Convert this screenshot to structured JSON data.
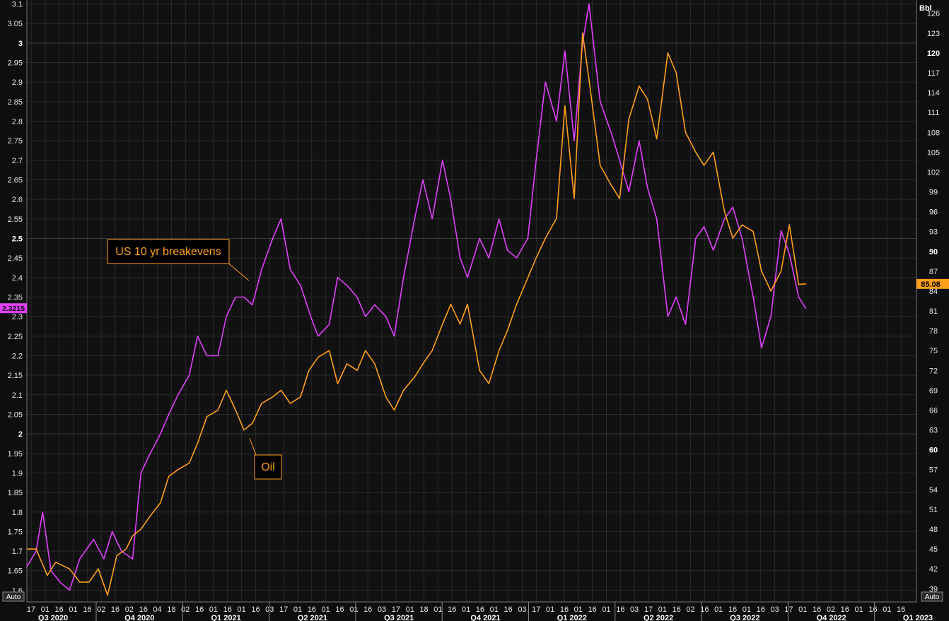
{
  "chart_data": {
    "type": "line",
    "left_axis": {
      "ylim": [
        1.57,
        3.11
      ],
      "ticks": [
        "1.6",
        "1.65",
        "1.7",
        "1.75",
        "1.8",
        "1.85",
        "1.9",
        "1.95",
        "2",
        "2.05",
        "2.1",
        "2.15",
        "2.2",
        "2.25",
        "2.3",
        "2.35",
        "2.4",
        "2.45",
        "2.5",
        "2.55",
        "2.6",
        "2.65",
        "2.7",
        "2.75",
        "2.8",
        "2.85",
        "2.9",
        "2.95",
        "3",
        "3.05",
        "3.1"
      ],
      "bold_ticks": [
        "2",
        "2.5",
        "3"
      ],
      "current_value": "2.3215",
      "auto_label": "Auto"
    },
    "right_axis": {
      "unit": "Bbl",
      "ylim": [
        37,
        128
      ],
      "ticks": [
        "39",
        "42",
        "45",
        "48",
        "51",
        "54",
        "57",
        "60",
        "63",
        "66",
        "69",
        "72",
        "75",
        "78",
        "81",
        "84",
        "87",
        "90",
        "93",
        "96",
        "99",
        "102",
        "105",
        "108",
        "111",
        "114",
        "117",
        "120",
        "123",
        "126"
      ],
      "bold_ticks": [
        "60",
        "90",
        "120"
      ],
      "current_value": "85.08",
      "auto_label": "Auto"
    },
    "x_axis": {
      "day_ticks": [
        "17",
        "01",
        "16",
        "01",
        "16",
        "02",
        "16",
        "02",
        "16",
        "04",
        "18",
        "02",
        "16",
        "01",
        "16",
        "01",
        "16",
        "03",
        "17",
        "01",
        "16",
        "01",
        "16",
        "01",
        "16",
        "03",
        "17",
        "01",
        "18",
        "01",
        "16",
        "01",
        "16",
        "01",
        "16",
        "03",
        "17",
        "01",
        "16",
        "01",
        "16",
        "01",
        "16",
        "03",
        "17",
        "01",
        "16",
        "02",
        "16",
        "01",
        "16",
        "01",
        "16",
        "03",
        "17",
        "01",
        "16",
        "02",
        "16",
        "01",
        "16",
        "01",
        "16"
      ],
      "quarters": [
        "Q3 2020",
        "Q4 2020",
        "Q1 2021",
        "Q2 2021",
        "Q3 2021",
        "Q4 2021",
        "Q1 2022",
        "Q2 2022",
        "Q3 2022",
        "Q4 2022",
        "Q1 2023"
      ],
      "start": "2020-07-10",
      "end": "2023-02-24"
    },
    "series": [
      {
        "name": "US 10 yr breakevens",
        "axis": "left",
        "color": "#e040fb",
        "x": [
          "2020-07-10",
          "2020-07-20",
          "2020-07-27",
          "2020-08-05",
          "2020-08-15",
          "2020-08-25",
          "2020-09-05",
          "2020-09-20",
          "2020-10-01",
          "2020-10-10",
          "2020-10-20",
          "2020-11-01",
          "2020-11-10",
          "2020-11-20",
          "2020-12-01",
          "2020-12-10",
          "2020-12-20",
          "2021-01-01",
          "2021-01-10",
          "2021-01-20",
          "2021-02-01",
          "2021-02-10",
          "2021-02-20",
          "2021-03-01",
          "2021-03-10",
          "2021-03-20",
          "2021-04-01",
          "2021-04-10",
          "2021-04-20",
          "2021-05-01",
          "2021-05-12",
          "2021-05-20",
          "2021-06-01",
          "2021-06-10",
          "2021-06-20",
          "2021-07-01",
          "2021-07-10",
          "2021-07-20",
          "2021-08-01",
          "2021-08-10",
          "2021-08-20",
          "2021-09-01",
          "2021-09-10",
          "2021-09-20",
          "2021-10-01",
          "2021-10-10",
          "2021-10-20",
          "2021-10-28",
          "2021-11-10",
          "2021-11-20",
          "2021-12-01",
          "2021-12-10",
          "2021-12-20",
          "2022-01-01",
          "2022-01-10",
          "2022-01-20",
          "2022-02-01",
          "2022-02-10",
          "2022-02-20",
          "2022-03-01",
          "2022-03-08",
          "2022-03-20",
          "2022-04-01",
          "2022-04-10",
          "2022-04-20",
          "2022-05-01",
          "2022-05-10",
          "2022-05-20",
          "2022-06-01",
          "2022-06-10",
          "2022-06-20",
          "2022-07-01",
          "2022-07-10",
          "2022-07-20",
          "2022-08-01",
          "2022-08-10",
          "2022-08-20",
          "2022-09-01",
          "2022-09-10",
          "2022-09-20",
          "2022-10-01",
          "2022-10-10",
          "2022-10-20",
          "2022-10-28"
        ],
        "y": [
          1.66,
          1.7,
          1.8,
          1.65,
          1.62,
          1.6,
          1.68,
          1.73,
          1.68,
          1.75,
          1.7,
          1.68,
          1.9,
          1.95,
          2.0,
          2.05,
          2.1,
          2.15,
          2.25,
          2.2,
          2.2,
          2.3,
          2.35,
          2.35,
          2.33,
          2.42,
          2.5,
          2.55,
          2.42,
          2.38,
          2.3,
          2.25,
          2.28,
          2.4,
          2.38,
          2.35,
          2.3,
          2.33,
          2.3,
          2.25,
          2.4,
          2.55,
          2.65,
          2.55,
          2.7,
          2.6,
          2.45,
          2.4,
          2.5,
          2.45,
          2.55,
          2.47,
          2.45,
          2.5,
          2.7,
          2.9,
          2.8,
          2.98,
          2.75,
          3.0,
          3.1,
          2.85,
          2.77,
          2.7,
          2.62,
          2.75,
          2.63,
          2.55,
          2.3,
          2.35,
          2.28,
          2.5,
          2.53,
          2.47,
          2.55,
          2.58,
          2.5,
          2.35,
          2.22,
          2.3,
          2.52,
          2.46,
          2.35,
          2.32
        ]
      },
      {
        "name": "Oil",
        "axis": "right",
        "color": "#ff9f1a",
        "x": [
          "2020-07-10",
          "2020-07-20",
          "2020-08-01",
          "2020-08-10",
          "2020-08-25",
          "2020-09-05",
          "2020-09-15",
          "2020-09-25",
          "2020-10-05",
          "2020-10-15",
          "2020-10-25",
          "2020-11-01",
          "2020-11-10",
          "2020-11-20",
          "2020-12-01",
          "2020-12-10",
          "2020-12-20",
          "2021-01-01",
          "2021-01-10",
          "2021-01-20",
          "2021-02-01",
          "2021-02-10",
          "2021-02-20",
          "2021-03-01",
          "2021-03-10",
          "2021-03-20",
          "2021-04-01",
          "2021-04-10",
          "2021-04-20",
          "2021-05-01",
          "2021-05-10",
          "2021-05-20",
          "2021-06-01",
          "2021-06-10",
          "2021-06-20",
          "2021-07-01",
          "2021-07-10",
          "2021-07-20",
          "2021-08-01",
          "2021-08-10",
          "2021-08-20",
          "2021-09-01",
          "2021-09-10",
          "2021-09-20",
          "2021-10-01",
          "2021-10-10",
          "2021-10-20",
          "2021-10-28",
          "2021-11-10",
          "2021-11-20",
          "2021-12-01",
          "2021-12-10",
          "2021-12-20",
          "2022-01-01",
          "2022-01-10",
          "2022-01-20",
          "2022-02-01",
          "2022-02-10",
          "2022-02-20",
          "2022-03-01",
          "2022-03-08",
          "2022-03-20",
          "2022-04-01",
          "2022-04-10",
          "2022-04-20",
          "2022-05-01",
          "2022-05-10",
          "2022-05-20",
          "2022-06-01",
          "2022-06-10",
          "2022-06-20",
          "2022-07-01",
          "2022-07-10",
          "2022-07-20",
          "2022-08-01",
          "2022-08-10",
          "2022-08-20",
          "2022-09-01",
          "2022-09-10",
          "2022-09-20",
          "2022-10-01",
          "2022-10-10",
          "2022-10-20",
          "2022-10-28"
        ],
        "y": [
          45,
          45,
          41,
          43,
          42,
          40,
          40,
          42,
          38,
          44,
          45,
          47,
          48,
          50,
          52,
          56,
          57,
          58,
          61,
          65,
          66,
          69,
          66,
          63,
          64,
          67,
          68,
          69,
          67,
          68,
          72,
          74,
          75,
          70,
          73,
          72,
          75,
          73,
          68,
          66,
          69,
          71,
          73,
          75,
          79,
          82,
          79,
          82,
          72,
          70,
          75,
          78,
          82,
          86,
          89,
          92,
          95,
          112,
          98,
          123,
          116,
          103,
          100,
          98,
          110,
          115,
          113,
          107,
          120,
          117,
          108,
          105,
          103,
          105,
          96,
          92,
          94,
          93,
          87,
          84,
          87,
          94,
          85,
          85.08
        ]
      }
    ],
    "annotations": [
      {
        "text": "US 10 yr breakevens"
      },
      {
        "text": "Oil"
      }
    ],
    "grid": true
  }
}
